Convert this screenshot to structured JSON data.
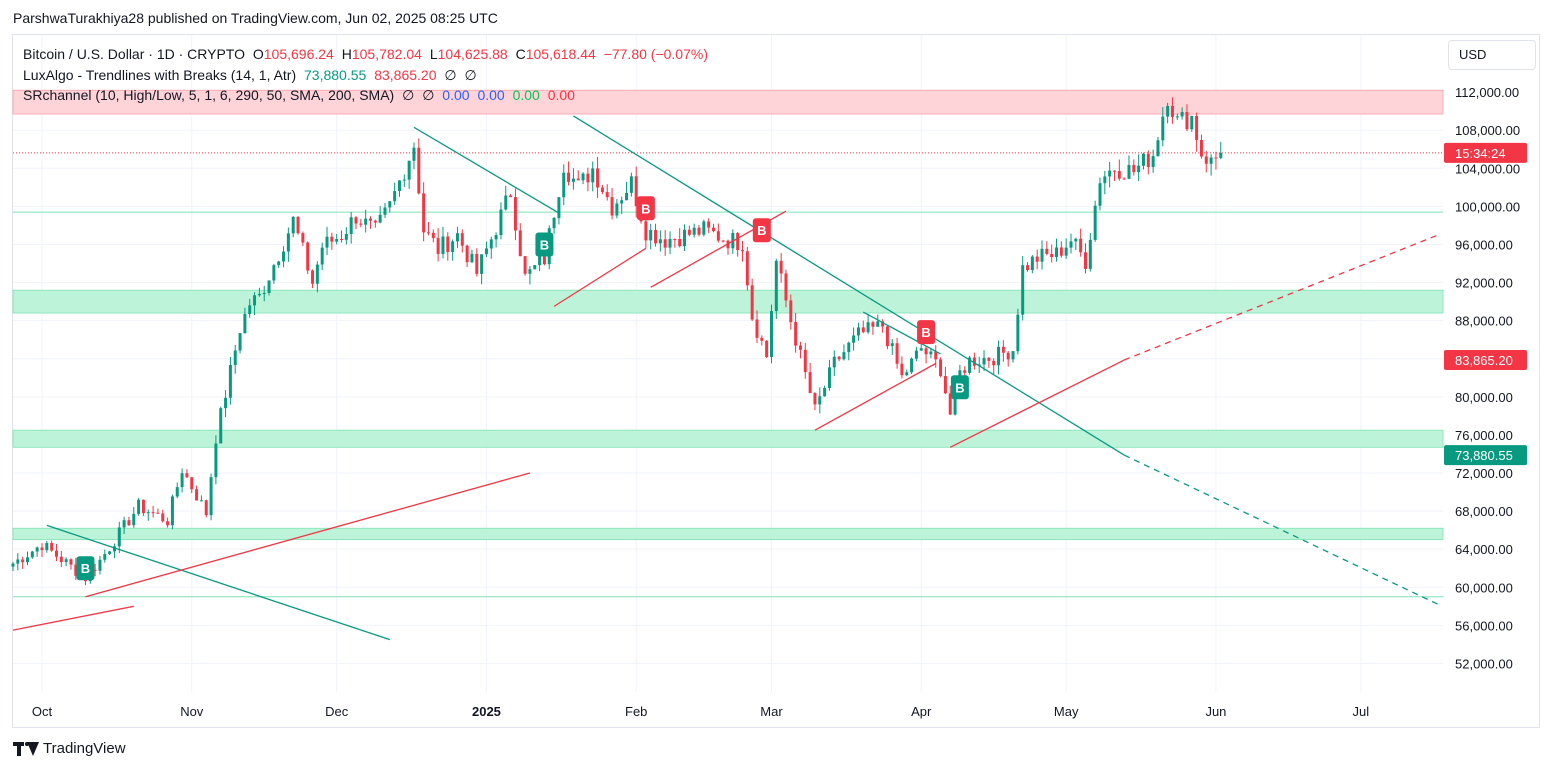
{
  "header": {
    "publisher_line": "ParshwaTurakhiya28 published on TradingView.com, Jun 02, 2025 08:25 UTC"
  },
  "legend": {
    "symbol": "Bitcoin / U.S. Dollar · 1D · CRYPTO",
    "o_label": "O",
    "o_value": "105,696.24",
    "h_label": "H",
    "h_value": "105,782.04",
    "l_label": "L",
    "l_value": "104,625.88",
    "c_label": "C",
    "c_value": "105,618.44",
    "change": "−77.80 (−0.07%)",
    "lux_name": "LuxAlgo - Trendlines with Breaks (14, 1, Atr)",
    "lux_val1": "73,880.55",
    "lux_val2": "83,865.20",
    "lux_na1": "∅",
    "lux_na2": "∅",
    "sr_name": "SRchannel (10, High/Low, 5, 1, 6, 290, 50, SMA, 200, SMA)",
    "sr_na1": "∅",
    "sr_na2": "∅",
    "sr_v1": "0.00",
    "sr_v2": "0.00",
    "sr_v3": "0.00",
    "sr_v4": "0.00"
  },
  "currency": "USD",
  "footer": {
    "brand": "TradingView"
  },
  "colors": {
    "up": "#089981",
    "down": "#f23645",
    "support": "#b2f2d2",
    "resistance": "#ffcdd2",
    "teal_line": "#089981",
    "red_line": "#f23645"
  },
  "chart_data": {
    "type": "candlestick",
    "symbol": "BTCUSD",
    "timeframe": "1D",
    "y_ticks": [
      "112,000.00",
      "108,000.00",
      "104,000.00",
      "100,000.00",
      "96,000.00",
      "92,000.00",
      "88,000.00",
      "84,000.00",
      "80,000.00",
      "76,000.00",
      "72,000.00",
      "68,000.00",
      "64,000.00",
      "60,000.00",
      "56,000.00",
      "52,000.00"
    ],
    "y_tick_values": [
      112000,
      108000,
      104000,
      100000,
      96000,
      92000,
      88000,
      84000,
      80000,
      76000,
      72000,
      68000,
      64000,
      60000,
      56000,
      52000
    ],
    "x_ticks": [
      "Oct",
      "Nov",
      "Dec",
      "2025",
      "Feb",
      "Mar",
      "Apr",
      "May",
      "Jun",
      "Jul"
    ],
    "x_tick_dates": [
      "2024-10-01",
      "2024-11-01",
      "2024-12-01",
      "2025-01-01",
      "2025-02-01",
      "2025-03-01",
      "2025-04-01",
      "2025-05-01",
      "2025-06-01",
      "2025-07-01"
    ],
    "x_range": [
      "2024-09-25",
      "2025-07-18"
    ],
    "y_range": [
      49000,
      118000
    ],
    "price_labels": [
      {
        "text": "15:34:24",
        "value": 105618.44,
        "color": "#f23645"
      },
      {
        "text": "83,865.20",
        "value": 83865.2,
        "color": "#f23645"
      },
      {
        "text": "73,880.55",
        "value": 73880.55,
        "color": "#089981"
      }
    ],
    "zones": [
      {
        "kind": "resistance",
        "from": 109700,
        "to": 112200
      },
      {
        "kind": "support",
        "from": 88800,
        "to": 91200
      },
      {
        "kind": "support",
        "from": 74700,
        "to": 76500
      },
      {
        "kind": "support",
        "from": 65000,
        "to": 66200
      }
    ],
    "levels": [
      99400,
      59000
    ],
    "trendlines": [
      {
        "color": "teal",
        "points": [
          [
            "2024-10-02",
            66500
          ],
          [
            "2024-12-12",
            54500
          ]
        ],
        "dashed": false
      },
      {
        "color": "red",
        "points": [
          [
            "2024-09-25",
            55500
          ],
          [
            "2024-10-20",
            58000
          ]
        ],
        "dashed": false
      },
      {
        "color": "red",
        "points": [
          [
            "2024-10-10",
            59000
          ],
          [
            "2025-01-10",
            72000
          ]
        ],
        "dashed": false
      },
      {
        "color": "teal",
        "points": [
          [
            "2024-12-17",
            108300
          ],
          [
            "2025-01-16",
            99300
          ]
        ],
        "dashed": false
      },
      {
        "color": "red",
        "points": [
          [
            "2025-01-15",
            89500
          ],
          [
            "2025-02-03",
            95600
          ]
        ],
        "dashed": false
      },
      {
        "color": "teal",
        "points": [
          [
            "2025-01-19",
            109500
          ],
          [
            "2025-05-13",
            73880.55
          ]
        ],
        "dashed": false
      },
      {
        "color": "teal",
        "points": [
          [
            "2025-05-13",
            73880.55
          ],
          [
            "2025-07-17",
            58200
          ]
        ],
        "dashed": true
      },
      {
        "color": "red",
        "points": [
          [
            "2025-02-04",
            91500
          ],
          [
            "2025-03-04",
            99500
          ]
        ],
        "dashed": false
      },
      {
        "color": "red",
        "points": [
          [
            "2025-03-10",
            76500
          ],
          [
            "2025-04-04",
            83500
          ]
        ],
        "dashed": false
      },
      {
        "color": "red",
        "points": [
          [
            "2025-04-07",
            74700
          ],
          [
            "2025-05-13",
            83865.2
          ]
        ],
        "dashed": false
      },
      {
        "color": "red",
        "points": [
          [
            "2025-05-13",
            83865.2
          ],
          [
            "2025-07-17",
            97000
          ]
        ],
        "dashed": true
      },
      {
        "color": "teal",
        "points": [
          [
            "2025-03-20",
            88900
          ],
          [
            "2025-04-05",
            84500
          ]
        ],
        "dashed": false
      }
    ],
    "markers": [
      {
        "date": "2024-10-10",
        "price": 62000,
        "label": "B",
        "kind": "bull"
      },
      {
        "date": "2025-01-13",
        "price": 96000,
        "label": "B",
        "kind": "bull"
      },
      {
        "date": "2025-02-03",
        "price": 99800,
        "label": "B",
        "kind": "bear"
      },
      {
        "date": "2025-02-27",
        "price": 97500,
        "label": "B",
        "kind": "bear"
      },
      {
        "date": "2025-04-02",
        "price": 86800,
        "label": "B",
        "kind": "bear"
      },
      {
        "date": "2025-04-09",
        "price": 81000,
        "label": "B",
        "kind": "bull"
      }
    ],
    "anchors": [
      [
        "2024-09-25",
        62500
      ],
      [
        "2024-10-01",
        64500
      ],
      [
        "2024-10-10",
        61000
      ],
      [
        "2024-10-13",
        62800
      ],
      [
        "2024-10-21",
        68500
      ],
      [
        "2024-10-27",
        67000
      ],
      [
        "2024-10-30",
        72400
      ],
      [
        "2024-11-04",
        67800
      ],
      [
        "2024-11-06",
        75800
      ],
      [
        "2024-11-11",
        87200
      ],
      [
        "2024-11-13",
        89800
      ],
      [
        "2024-11-15",
        90500
      ],
      [
        "2024-11-22",
        98500
      ],
      [
        "2024-11-26",
        92000
      ],
      [
        "2024-11-28",
        95800
      ],
      [
        "2024-12-02",
        97000
      ],
      [
        "2024-12-05",
        99000
      ],
      [
        "2024-12-09",
        97300
      ],
      [
        "2024-12-12",
        100000
      ],
      [
        "2024-12-17",
        106500
      ],
      [
        "2024-12-19",
        97500
      ],
      [
        "2024-12-22",
        95500
      ],
      [
        "2024-12-26",
        97000
      ],
      [
        "2024-12-30",
        93000
      ],
      [
        "2025-01-03",
        97800
      ],
      [
        "2025-01-06",
        101500
      ],
      [
        "2025-01-09",
        92500
      ],
      [
        "2025-01-13",
        94500
      ],
      [
        "2025-01-17",
        104500
      ],
      [
        "2025-01-20",
        102000
      ],
      [
        "2025-01-23",
        104000
      ],
      [
        "2025-01-27",
        100000
      ],
      [
        "2025-01-31",
        102500
      ],
      [
        "2025-02-03",
        97500
      ],
      [
        "2025-02-07",
        96500
      ],
      [
        "2025-02-15",
        97500
      ],
      [
        "2025-02-20",
        96500
      ],
      [
        "2025-02-23",
        96200
      ],
      [
        "2025-02-25",
        88500
      ],
      [
        "2025-02-28",
        84300
      ],
      [
        "2025-03-02",
        94200
      ],
      [
        "2025-03-05",
        88000
      ],
      [
        "2025-03-10",
        78500
      ],
      [
        "2025-03-14",
        83500
      ],
      [
        "2025-03-19",
        86500
      ],
      [
        "2025-03-24",
        87500
      ],
      [
        "2025-03-28",
        82000
      ],
      [
        "2025-04-01",
        85100
      ],
      [
        "2025-04-05",
        83000
      ],
      [
        "2025-04-07",
        78200
      ],
      [
        "2025-04-09",
        82500
      ],
      [
        "2025-04-11",
        83800
      ],
      [
        "2025-04-16",
        84200
      ],
      [
        "2025-04-20",
        85000
      ],
      [
        "2025-04-22",
        93500
      ],
      [
        "2025-04-25",
        94600
      ],
      [
        "2025-04-29",
        95000
      ],
      [
        "2025-05-02",
        96500
      ],
      [
        "2025-05-05",
        94300
      ],
      [
        "2025-05-08",
        103000
      ],
      [
        "2025-05-11",
        104100
      ],
      [
        "2025-05-15",
        103700
      ],
      [
        "2025-05-19",
        105500
      ],
      [
        "2025-05-21",
        109700
      ],
      [
        "2025-05-22",
        111700
      ],
      [
        "2025-05-24",
        108900
      ],
      [
        "2025-05-27",
        109400
      ],
      [
        "2025-05-29",
        105600
      ],
      [
        "2025-05-31",
        104600
      ],
      [
        "2025-06-02",
        105618.44
      ]
    ]
  }
}
